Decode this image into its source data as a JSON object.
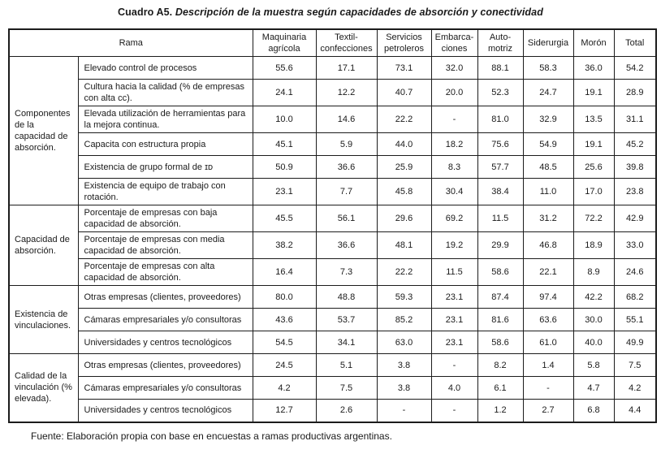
{
  "title": {
    "prefix": "Cuadro A5. ",
    "rest": "Descripción de la muestra según capacidades de absorción y conectividad"
  },
  "footer": "Fuente: Elaboración propia con base en encuestas a ramas productivas argentinas.",
  "table": {
    "rama_header": "Rama",
    "columns": [
      "Maquinaria\nagrícola",
      "Textil-\nconfecciones",
      "Servicios\npetroleros",
      "Embarca-\nciones",
      "Auto-\nmotriz",
      "Siderurgia",
      "Morón",
      "Total"
    ],
    "groups": [
      {
        "label": "Componentes de la capacidad de absorción.",
        "rows": [
          {
            "label": "Elevado control de procesos",
            "values": [
              "55.6",
              "17.1",
              "73.1",
              "32.0",
              "88.1",
              "58.3",
              "36.0",
              "54.2"
            ]
          },
          {
            "label": "Cultura hacia la calidad (% de empresas con alta ᴄᴄ).",
            "values": [
              "24.1",
              "12.2",
              "40.7",
              "20.0",
              "52.3",
              "24.7",
              "19.1",
              "28.9"
            ]
          },
          {
            "label": "Elevada utilización de herramientas para la mejora continua.",
            "values": [
              "10.0",
              "14.6",
              "22.2",
              "-",
              "81.0",
              "32.9",
              "13.5",
              "31.1"
            ]
          },
          {
            "label": "Capacita con estructura propia",
            "values": [
              "45.1",
              "5.9",
              "44.0",
              "18.2",
              "75.6",
              "54.9",
              "19.1",
              "45.2"
            ]
          },
          {
            "label": "Existencia de grupo formal de ɪᴅ",
            "values": [
              "50.9",
              "36.6",
              "25.9",
              "8.3",
              "57.7",
              "48.5",
              "25.6",
              "39.8"
            ]
          },
          {
            "label": "Existencia de equipo de trabajo con rotación.",
            "values": [
              "23.1",
              "7.7",
              "45.8",
              "30.4",
              "38.4",
              "11.0",
              "17.0",
              "23.8"
            ]
          }
        ]
      },
      {
        "label": "Capacidad de absorción.",
        "rows": [
          {
            "label": "Porcentaje de empresas con baja capacidad de absorción.",
            "values": [
              "45.5",
              "56.1",
              "29.6",
              "69.2",
              "11.5",
              "31.2",
              "72.2",
              "42.9"
            ]
          },
          {
            "label": "Porcentaje de empresas con media capacidad de absorción.",
            "values": [
              "38.2",
              "36.6",
              "48.1",
              "19.2",
              "29.9",
              "46.8",
              "18.9",
              "33.0"
            ]
          },
          {
            "label": "Porcentaje de empresas con alta capacidad de absorción.",
            "values": [
              "16.4",
              "7.3",
              "22.2",
              "11.5",
              "58.6",
              "22.1",
              "8.9",
              "24.6"
            ]
          }
        ]
      },
      {
        "label": "Existencia de vinculaciones.",
        "rows": [
          {
            "label": "Otras empresas (clientes, proveedores)",
            "values": [
              "80.0",
              "48.8",
              "59.3",
              "23.1",
              "87.4",
              "97.4",
              "42.2",
              "68.2"
            ]
          },
          {
            "label": "Cámaras empresariales y/o consultoras",
            "values": [
              "43.6",
              "53.7",
              "85.2",
              "23.1",
              "81.6",
              "63.6",
              "30.0",
              "55.1"
            ]
          },
          {
            "label": "Universidades y centros tecnológicos",
            "values": [
              "54.5",
              "34.1",
              "63.0",
              "23.1",
              "58.6",
              "61.0",
              "40.0",
              "49.9"
            ]
          }
        ]
      },
      {
        "label": "Calidad de la vinculación (% elevada).",
        "rows": [
          {
            "label": "Otras empresas (clientes, proveedores)",
            "values": [
              "24.5",
              "5.1",
              "3.8",
              "-",
              "8.2",
              "1.4",
              "5.8",
              "7.5"
            ]
          },
          {
            "label": "Cámaras empresariales y/o consultoras",
            "values": [
              "4.2",
              "7.5",
              "3.8",
              "4.0",
              "6.1",
              "-",
              "4.7",
              "4.2"
            ]
          },
          {
            "label": "Universidades y centros tecnológicos",
            "values": [
              "12.7",
              "2.6",
              "-",
              "-",
              "1.2",
              "2.7",
              "6.8",
              "4.4"
            ]
          }
        ]
      }
    ]
  }
}
